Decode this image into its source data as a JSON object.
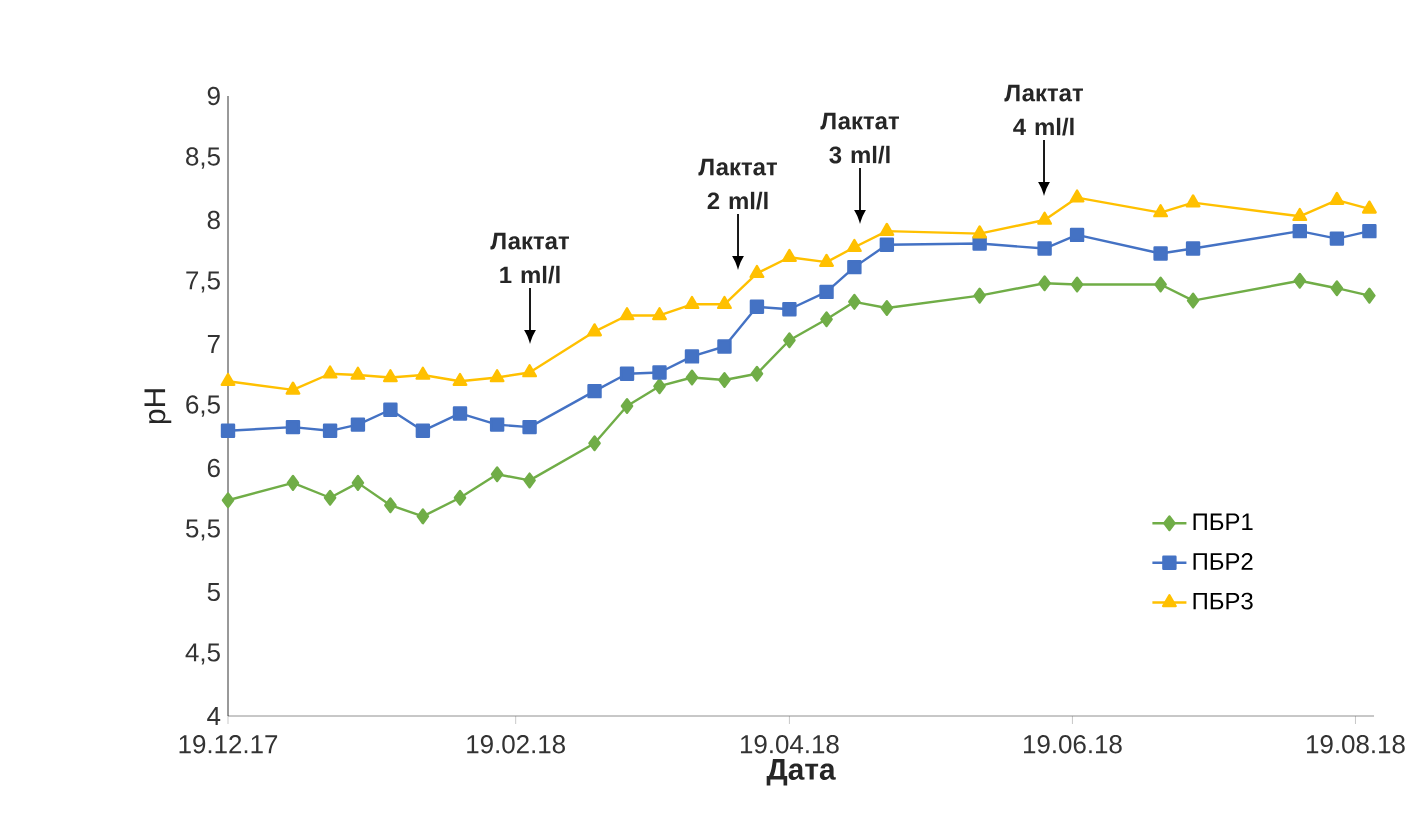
{
  "chart_data": {
    "type": "line",
    "xlabel": "Дата",
    "ylabel": "pH",
    "x": [
      "2017-12-19",
      "2018-01-02",
      "2018-01-10",
      "2018-01-16",
      "2018-01-23",
      "2018-01-30",
      "2018-02-07",
      "2018-02-15",
      "2018-02-22",
      "2018-03-08",
      "2018-03-15",
      "2018-03-22",
      "2018-03-29",
      "2018-04-05",
      "2018-04-12",
      "2018-04-19",
      "2018-04-27",
      "2018-05-03",
      "2018-05-10",
      "2018-05-30",
      "2018-06-13",
      "2018-06-20",
      "2018-07-08",
      "2018-07-15",
      "2018-08-07",
      "2018-08-15",
      "2018-08-22"
    ],
    "series": [
      {
        "name": "ПБР1",
        "color": "#70ad47",
        "marker": "diamond",
        "values": [
          5.74,
          5.88,
          5.76,
          5.88,
          5.7,
          5.61,
          5.76,
          5.95,
          5.9,
          6.2,
          6.5,
          6.66,
          6.73,
          6.71,
          6.76,
          7.03,
          7.2,
          7.34,
          7.29,
          7.39,
          7.49,
          7.48,
          7.48,
          7.35,
          7.51,
          7.45,
          7.39
        ]
      },
      {
        "name": "ПБР2",
        "color": "#4472c4",
        "marker": "square",
        "values": [
          6.3,
          6.33,
          6.3,
          6.35,
          6.47,
          6.3,
          6.44,
          6.35,
          6.33,
          6.62,
          6.76,
          6.77,
          6.9,
          6.98,
          7.3,
          7.28,
          7.42,
          7.62,
          7.8,
          7.81,
          7.77,
          7.88,
          7.73,
          7.77,
          7.91,
          7.85,
          7.91
        ]
      },
      {
        "name": "ПБР3",
        "color": "#ffc000",
        "marker": "triangle",
        "values": [
          6.7,
          6.63,
          6.76,
          6.75,
          6.73,
          6.75,
          6.7,
          6.73,
          6.77,
          7.1,
          7.23,
          7.23,
          7.32,
          7.32,
          7.57,
          7.7,
          7.66,
          7.78,
          7.91,
          7.89,
          8.0,
          8.18,
          8.06,
          8.14,
          8.03,
          8.16,
          8.09
        ]
      }
    ],
    "xlim": [
      "2017-12-19",
      "2018-08-23"
    ],
    "xticks": [
      {
        "value": "2017-12-19",
        "label": "19.12.17"
      },
      {
        "value": "2018-02-19",
        "label": "19.02.18"
      },
      {
        "value": "2018-04-19",
        "label": "19.04.18"
      },
      {
        "value": "2018-06-19",
        "label": "19.06.18"
      },
      {
        "value": "2018-08-19",
        "label": "19.08.18"
      }
    ],
    "ylim": [
      4,
      9
    ],
    "yticks": [
      4,
      {
        "value": 4.5,
        "label": "4,5"
      },
      5,
      {
        "value": 5.5,
        "label": "5,5"
      },
      6,
      {
        "value": 6.5,
        "label": "6,5"
      },
      7,
      {
        "value": 7.5,
        "label": "7,5"
      },
      8,
      {
        "value": 8.5,
        "label": "8,5"
      },
      9
    ],
    "annotations": [
      "Лактат 1 ml/l",
      "Лактат 2 ml/l",
      "Лактат 3 ml/l",
      "Лактат 4 ml/l"
    ],
    "grid": false,
    "legend": "bottom right",
    "line_style": "solid"
  }
}
